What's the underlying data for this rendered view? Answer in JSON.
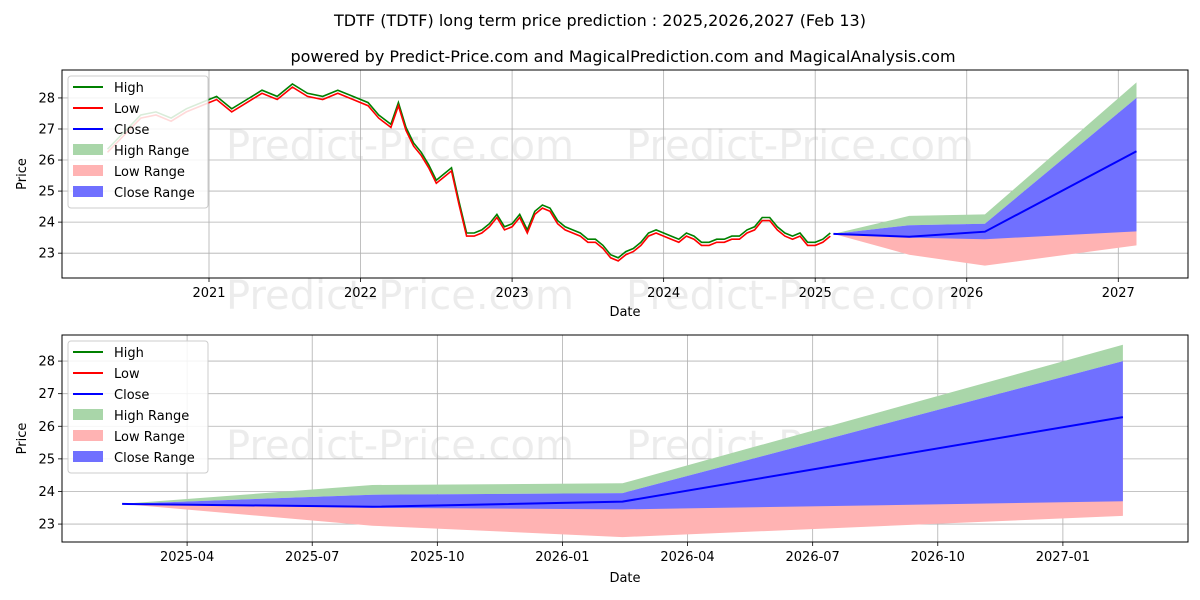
{
  "title": "TDTF (TDTF) long term price prediction : 2025,2026,2027 (Feb 13)",
  "subtitle": "powered by Predict-Price.com and MagicalPrediction.com and MagicalAnalysis.com",
  "watermark": "Predict-Price.com",
  "colors": {
    "high": "#008000",
    "low": "#ff0000",
    "close": "#0000ff",
    "high_range": "#a9d6a9",
    "low_range": "#ffb3b3",
    "close_range": "#7070ff"
  },
  "legend": [
    "High",
    "Low",
    "Close",
    "High Range",
    "Low Range",
    "Close Range"
  ],
  "chart_data": [
    {
      "type": "line",
      "title": "TDTF (TDTF) long term price prediction : 2025,2026,2027 (Feb 13)",
      "xlabel": "Date",
      "ylabel": "Price",
      "xlim": [
        2020.03,
        2027.46
      ],
      "ylim": [
        22.2,
        28.9
      ],
      "xticks": [
        2021,
        2022,
        2023,
        2024,
        2025,
        2026,
        2027
      ],
      "xtick_labels": [
        "2021",
        "2022",
        "2023",
        "2024",
        "2025",
        "2026",
        "2027"
      ],
      "yticks": [
        23,
        24,
        25,
        26,
        27,
        28
      ],
      "grid": true,
      "legend_position": "top-left",
      "history_close": {
        "x": [
          2020.33,
          2020.45,
          2020.55,
          2020.65,
          2020.75,
          2020.85,
          2020.95,
          2021.05,
          2021.15,
          2021.25,
          2021.35,
          2021.45,
          2021.55,
          2021.65,
          2021.75,
          2021.85,
          2021.95,
          2022.05,
          2022.12,
          2022.2,
          2022.25,
          2022.3,
          2022.35,
          2022.4,
          2022.45,
          2022.5,
          2022.55,
          2022.6,
          2022.65,
          2022.7,
          2022.75,
          2022.8,
          2022.85,
          2022.9,
          2022.95,
          2023.0,
          2023.05,
          2023.1,
          2023.15,
          2023.2,
          2023.25,
          2023.3,
          2023.35,
          2023.4,
          2023.45,
          2023.5,
          2023.55,
          2023.6,
          2023.65,
          2023.7,
          2023.75,
          2023.8,
          2023.85,
          2023.9,
          2023.95,
          2024.0,
          2024.05,
          2024.1,
          2024.15,
          2024.2,
          2024.25,
          2024.3,
          2024.35,
          2024.4,
          2024.45,
          2024.5,
          2024.55,
          2024.6,
          2024.65,
          2024.7,
          2024.75,
          2024.8,
          2024.85,
          2024.9,
          2024.95,
          2025.0,
          2025.05,
          2025.1
        ],
        "y": [
          26.3,
          26.9,
          27.4,
          27.5,
          27.3,
          27.6,
          27.8,
          28.0,
          27.6,
          27.9,
          28.2,
          28.0,
          28.4,
          28.1,
          28.0,
          28.2,
          28.0,
          27.8,
          27.4,
          27.1,
          27.8,
          27.0,
          26.5,
          26.2,
          25.8,
          25.3,
          25.5,
          25.7,
          24.6,
          23.6,
          23.6,
          23.7,
          23.9,
          24.2,
          23.8,
          23.9,
          24.2,
          23.7,
          24.3,
          24.5,
          24.4,
          24.0,
          23.8,
          23.7,
          23.6,
          23.4,
          23.4,
          23.2,
          22.9,
          22.8,
          23.0,
          23.1,
          23.3,
          23.6,
          23.7,
          23.6,
          23.5,
          23.4,
          23.6,
          23.5,
          23.3,
          23.3,
          23.4,
          23.4,
          23.5,
          23.5,
          23.7,
          23.8,
          24.1,
          24.1,
          23.8,
          23.6,
          23.5,
          23.6,
          23.3,
          23.3,
          23.4,
          23.6
        ]
      },
      "forecast": {
        "x": [
          2025.12,
          2025.62,
          2026.12,
          2027.12
        ],
        "close": [
          23.62,
          23.53,
          23.69,
          26.28
        ],
        "close_range_high": [
          23.62,
          23.9,
          23.95,
          28.0
        ],
        "close_range_low": [
          23.62,
          23.5,
          23.45,
          23.7
        ],
        "high_range_high": [
          23.62,
          24.2,
          24.25,
          28.5
        ],
        "low_range_high": [
          23.62,
          23.5,
          23.5,
          26.3
        ],
        "low_range_low": [
          23.62,
          22.95,
          22.6,
          23.25
        ]
      }
    },
    {
      "type": "line",
      "xlabel": "Date",
      "ylabel": "Price",
      "xlim": [
        2025.0,
        2027.25
      ],
      "ylim": [
        22.45,
        28.8
      ],
      "xticks": [
        2025.25,
        2025.5,
        2025.75,
        2026.0,
        2026.25,
        2026.5,
        2026.75,
        2027.0
      ],
      "xtick_labels": [
        "2025-04",
        "2025-07",
        "2025-10",
        "2026-01",
        "2026-04",
        "2026-07",
        "2026-10",
        "2027-01"
      ],
      "yticks": [
        23,
        24,
        25,
        26,
        27,
        28
      ],
      "grid": true,
      "legend_position": "top-left",
      "forecast": {
        "x": [
          2025.12,
          2025.62,
          2026.12,
          2027.12
        ],
        "close": [
          23.62,
          23.53,
          23.69,
          26.28
        ],
        "close_range_high": [
          23.62,
          23.9,
          23.95,
          28.0
        ],
        "close_range_low": [
          23.62,
          23.5,
          23.45,
          23.7
        ],
        "high_range_high": [
          23.62,
          24.2,
          24.25,
          28.5
        ],
        "low_range_high": [
          23.62,
          23.5,
          23.5,
          26.3
        ],
        "low_range_low": [
          23.62,
          22.95,
          22.6,
          23.25
        ]
      }
    }
  ]
}
